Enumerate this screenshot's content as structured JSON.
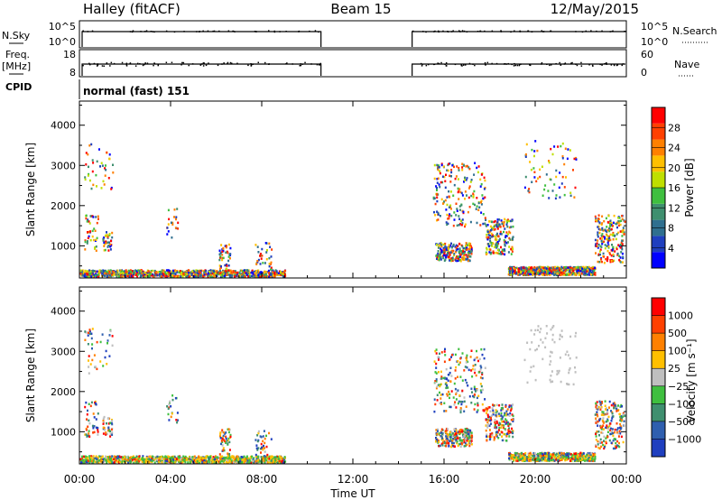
{
  "header": {
    "station": "Halley (fitACF)",
    "beam": "Beam 15",
    "date": "12/May/2015"
  },
  "params_panel": {
    "nsky_label": "N.Sky",
    "nsky_ticks": [
      "10^5",
      "10^0"
    ],
    "nsearch_label": "N.Search",
    "nsearch_ticks": [
      "10^5",
      "10^0"
    ],
    "freq_label": "Freq.",
    "freq_unit": "[MHz]",
    "freq_ticks": [
      "18",
      "8"
    ],
    "nave_label": "Nave",
    "nave_ticks": [
      "60",
      "0"
    ],
    "cpid_label": "CPID",
    "cpid_value": "normal (fast) 151",
    "gap_hours": [
      10.6,
      14.6
    ]
  },
  "x_axis": {
    "label": "Time UT",
    "ticks": [
      "00:00",
      "04:00",
      "08:00",
      "12:00",
      "16:00",
      "20:00",
      "00:00"
    ],
    "range_hours": [
      0,
      24
    ]
  },
  "chart_data": [
    {
      "type": "heatmap",
      "panel": "power",
      "ylabel": "Slant Range [km]",
      "y_ticks": [
        "4000",
        "3000",
        "2000",
        "1000"
      ],
      "ylim": [
        200,
        4600
      ],
      "colorbar_label": "Power [dB]",
      "colorbar_ticks": [
        "28",
        "24",
        "20",
        "16",
        "12",
        "8",
        "4"
      ],
      "colorbar_colors": [
        "#0000ff",
        "#1f3fbf",
        "#2f6f8f",
        "#3f8f6f",
        "#3fbf3f",
        "#bfdf00",
        "#ffbf00",
        "#ff8000",
        "#ff4000",
        "#ff0000"
      ]
    },
    {
      "type": "heatmap",
      "panel": "velocity",
      "ylabel": "Slant Range [km]",
      "y_ticks": [
        "4000",
        "3000",
        "2000",
        "1000"
      ],
      "ylim": [
        200,
        4600
      ],
      "colorbar_label": "Velocity [m s⁻¹]",
      "colorbar_ticks": [
        "1000",
        "500",
        "100",
        "25",
        "−25",
        "−100",
        "−500",
        "−1000"
      ],
      "colorbar_colors": [
        "#1f3fbf",
        "#2f5faf",
        "#3f8f6f",
        "#3fbf3f",
        "#bfbfbf",
        "#ffbf00",
        "#ff8000",
        "#ff4000",
        "#ff0000"
      ],
      "ground_scatter_color": "#808080"
    }
  ]
}
